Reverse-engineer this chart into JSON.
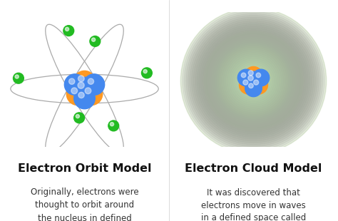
{
  "background_color": "#ffffff",
  "left_title": "Electron Orbit Model",
  "right_title": "Electron Cloud Model",
  "left_desc": "Originally, electrons were\nthought to orbit around\nthe nucleus in defined\npaths.",
  "right_desc": "It was discovered that\nelectrons move in waves\nin a defined space called\nan electron cloud.",
  "title_fontsize": 11.5,
  "desc_fontsize": 8.5,
  "title_color": "#111111",
  "desc_color": "#333333",
  "orbit_color": "#aaaaaa",
  "electron_color": "#22bb22",
  "nucleus_blue": "#4488ee",
  "nucleus_orange": "#ff9922",
  "divider_color": "#cccccc"
}
